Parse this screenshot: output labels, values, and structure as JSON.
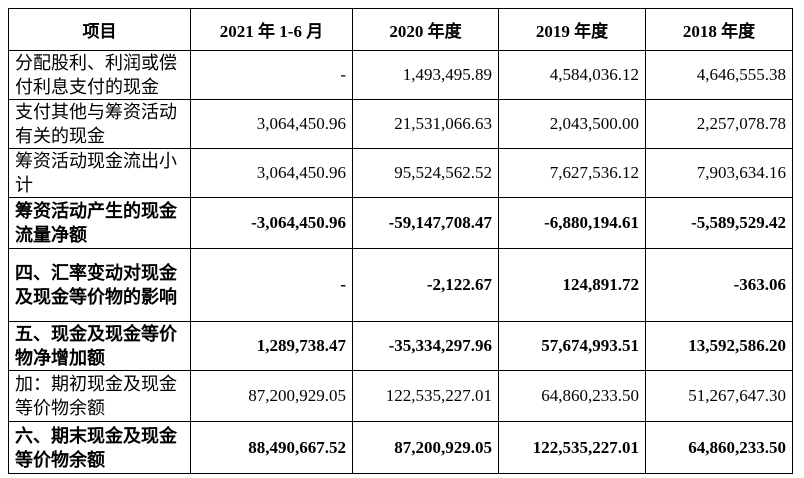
{
  "table": {
    "header": [
      "项目",
      "2021 年 1-6 月",
      "2020 年度",
      "2019 年度",
      "2018 年度"
    ],
    "rows": [
      {
        "cells": [
          "分配股利、利润或偿付利息支付的现金",
          "-",
          "1,493,495.89",
          "4,584,036.12",
          "4,646,555.38"
        ],
        "bold": false
      },
      {
        "cells": [
          "支付其他与筹资活动有关的现金",
          "3,064,450.96",
          "21,531,066.63",
          "2,043,500.00",
          "2,257,078.78"
        ],
        "bold": false
      },
      {
        "cells": [
          "筹资活动现金流出小计",
          "3,064,450.96",
          "95,524,562.52",
          "7,627,536.12",
          "7,903,634.16"
        ],
        "bold": false
      },
      {
        "cells": [
          "筹资活动产生的现金流量净额",
          "-3,064,450.96",
          "-59,147,708.47",
          "-6,880,194.61",
          "-5,589,529.42"
        ],
        "bold": true
      },
      {
        "cells": [
          "四、汇率变动对现金及现金等价物的影响",
          "-",
          "-2,122.67",
          "124,891.72",
          "-363.06"
        ],
        "bold": true
      },
      {
        "cells": [
          "五、现金及现金等价物净增加额",
          "1,289,738.47",
          "-35,334,297.96",
          "57,674,993.51",
          "13,592,586.20"
        ],
        "bold": true
      },
      {
        "cells": [
          "加：期初现金及现金等价物余额",
          "87,200,929.05",
          "122,535,227.01",
          "64,860,233.50",
          "51,267,647.30"
        ],
        "bold": false
      },
      {
        "cells": [
          "六、期末现金及现金等价物余额",
          "88,490,667.52",
          "87,200,929.05",
          "122,535,227.01",
          "64,860,233.50"
        ],
        "bold": true
      }
    ]
  }
}
